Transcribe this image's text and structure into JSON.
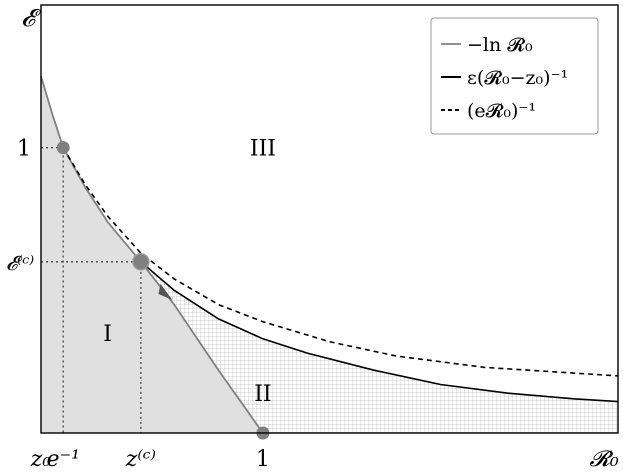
{
  "chart_data": {
    "type": "line",
    "x_axis": {
      "label": "𝓡₀",
      "range": [
        0.0,
        2.6
      ],
      "ticks": [
        {
          "value": 0.0,
          "label": "z₀"
        },
        {
          "value": 0.1,
          "label": "e⁻¹"
        },
        {
          "value": 0.45,
          "label": "z⁽ᶜ⁾"
        },
        {
          "value": 1.0,
          "label": "1"
        }
      ]
    },
    "y_axis": {
      "label": "𝓔",
      "range": [
        0.0,
        1.5
      ],
      "ticks": [
        {
          "value": 1.0,
          "label": "1"
        },
        {
          "value": 0.6,
          "label": "𝓔⁽ᶜ⁾"
        }
      ]
    },
    "series": [
      {
        "name": "−ln 𝓡₀",
        "color": "#808080",
        "style": "solid",
        "points": [
          [
            0.0,
            1.25
          ],
          [
            0.05,
            1.12
          ],
          [
            0.1,
            1.0
          ],
          [
            0.2,
            0.86
          ],
          [
            0.3,
            0.74
          ],
          [
            0.45,
            0.6
          ],
          [
            0.6,
            0.45
          ],
          [
            0.8,
            0.22
          ],
          [
            1.0,
            0.0
          ]
        ]
      },
      {
        "name": "ε(𝓡₀−z₀)⁻¹",
        "color": "#000000",
        "style": "solid",
        "points": [
          [
            0.45,
            0.6
          ],
          [
            0.6,
            0.5
          ],
          [
            0.8,
            0.4
          ],
          [
            1.0,
            0.33
          ],
          [
            1.2,
            0.28
          ],
          [
            1.5,
            0.22
          ],
          [
            1.8,
            0.17
          ],
          [
            2.1,
            0.14
          ],
          [
            2.4,
            0.12
          ],
          [
            2.6,
            0.11
          ]
        ]
      },
      {
        "name": "(e𝓡₀)⁻¹",
        "color": "#000000",
        "style": "dashed",
        "points": [
          [
            0.1,
            1.0
          ],
          [
            0.2,
            0.87
          ],
          [
            0.3,
            0.76
          ],
          [
            0.45,
            0.63
          ],
          [
            0.6,
            0.54
          ],
          [
            0.8,
            0.45
          ],
          [
            1.0,
            0.39
          ],
          [
            1.3,
            0.32
          ],
          [
            1.6,
            0.27
          ],
          [
            2.0,
            0.23
          ],
          [
            2.6,
            0.2
          ]
        ]
      }
    ],
    "markers": [
      {
        "x": 0.1,
        "y": 1.0
      },
      {
        "x": 0.45,
        "y": 0.6
      },
      {
        "x": 1.0,
        "y": 0.0
      }
    ],
    "region_labels": [
      {
        "text": "I",
        "x": 0.3,
        "y": 0.35
      },
      {
        "text": "II",
        "x": 1.0,
        "y": 0.14
      },
      {
        "text": "III",
        "x": 1.0,
        "y": 1.0
      }
    ],
    "legend": {
      "position": "top-right",
      "frame": true
    },
    "grid": false,
    "colors": {
      "region_fill": "#e0e0e0",
      "hatch": "#b8b8b8",
      "marker": "#808080"
    }
  }
}
